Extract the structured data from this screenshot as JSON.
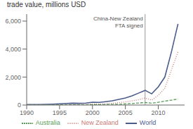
{
  "chart_data": {
    "type": "line",
    "title": "trade value, millions USD",
    "x": [
      1990,
      1991,
      1992,
      1993,
      1994,
      1995,
      1996,
      1997,
      1998,
      1999,
      2000,
      2001,
      2002,
      2003,
      2004,
      2005,
      2006,
      2007,
      2008,
      2009,
      2010,
      2011,
      2012,
      2013
    ],
    "xlim": [
      1990,
      2014
    ],
    "xticks": [
      1990,
      1995,
      2000,
      2005,
      2010
    ],
    "ylim": [
      0,
      6500
    ],
    "yticks": [
      0,
      {
        "value": 2000,
        "label": "2,000"
      },
      {
        "value": 4000,
        "label": "4,000"
      },
      {
        "value": 6000,
        "label": "6,000"
      }
    ],
    "grid": false,
    "legend": "bottom",
    "series": [
      {
        "name": "World",
        "color": "#4a5b8c",
        "line_style": "solid",
        "values": [
          30,
          35,
          40,
          50,
          65,
          85,
          110,
          130,
          120,
          140,
          200,
          190,
          240,
          300,
          400,
          500,
          650,
          850,
          1050,
          800,
          1300,
          2000,
          3800,
          5800
        ]
      },
      {
        "name": "New Zealand",
        "color": "#c77b72",
        "line_style": "dotted",
        "values": [
          10,
          12,
          14,
          16,
          20,
          25,
          30,
          40,
          38,
          45,
          70,
          65,
          90,
          120,
          170,
          220,
          300,
          380,
          500,
          350,
          700,
          1200,
          2500,
          3800
        ]
      },
      {
        "name": "Australia",
        "color": "#5a9c5a",
        "line_style": "dashed",
        "values": [
          5,
          6,
          7,
          8,
          10,
          12,
          15,
          18,
          16,
          20,
          30,
          28,
          35,
          45,
          60,
          80,
          110,
          140,
          180,
          130,
          200,
          280,
          350,
          430
        ]
      }
    ],
    "annotations": [
      {
        "text": "China-New Zealand\nFTA signed",
        "x": 2008
      }
    ]
  }
}
